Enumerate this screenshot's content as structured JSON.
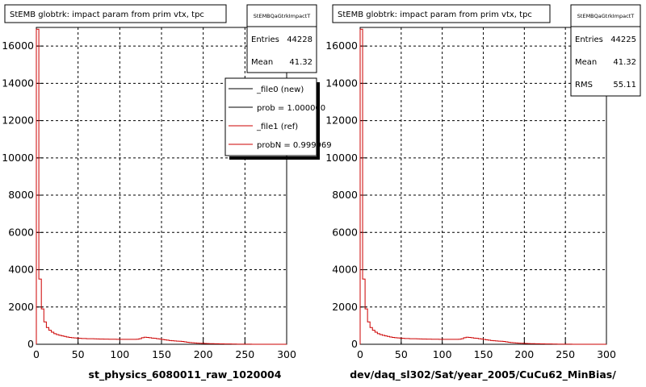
{
  "chart_data": [
    {
      "type": "line",
      "title": "StEMB globtrk: impact param from prim vtx, tpc",
      "xlabel": "st_physics_6080011_raw_1020004",
      "ylabel": "",
      "xlim": [
        0,
        300
      ],
      "ylim": [
        0,
        17000
      ],
      "grid": true,
      "x_ticks": [
        "0",
        "50",
        "100",
        "150",
        "200",
        "250",
        "300"
      ],
      "y_ticks": [
        "0",
        "2000",
        "4000",
        "6000",
        "8000",
        "10000",
        "12000",
        "14000",
        "16000"
      ],
      "stats": {
        "name": "StEMBQaGtrkImpactT",
        "rows": [
          {
            "label": "Entries",
            "value": "44228"
          },
          {
            "label": "Mean",
            "value": "41.32"
          }
        ]
      },
      "legend": {
        "position": "top-right",
        "entries": [
          {
            "label": "_file0 (new)",
            "color": "#000000"
          },
          {
            "label": "prob = 1.000000",
            "color": "#000000"
          },
          {
            "label": "_file1 (ref)",
            "color": "#cc0000"
          },
          {
            "label": "probN = 0.999969",
            "color": "#cc0000"
          }
        ]
      },
      "series": [
        {
          "color": "#cc0000",
          "bin_width": 3,
          "values": [
            16900,
            3500,
            1900,
            1200,
            900,
            750,
            650,
            570,
            520,
            480,
            450,
            420,
            390,
            370,
            350,
            340,
            330,
            320,
            310,
            310,
            300,
            300,
            295,
            290,
            285,
            280,
            280,
            275,
            275,
            270,
            270,
            270,
            265,
            265,
            265,
            265,
            265,
            265,
            265,
            265,
            270,
            300,
            350,
            380,
            370,
            350,
            330,
            320,
            300,
            280,
            260,
            240,
            220,
            200,
            190,
            180,
            170,
            160,
            150,
            130,
            110,
            90,
            80,
            70,
            60,
            55,
            50,
            45,
            40,
            35,
            30,
            27,
            25,
            22,
            20,
            18,
            16,
            14,
            12,
            10,
            8,
            7,
            6,
            5,
            4,
            3,
            2,
            2,
            1,
            1,
            0,
            0,
            0,
            0,
            0,
            0,
            0,
            0,
            0,
            0
          ]
        }
      ]
    },
    {
      "type": "line",
      "title": "StEMB globtrk: impact param from prim vtx, tpc",
      "xlabel": "dev/daq_sl302/Sat/year_2005/CuCu62_MinBias/",
      "ylabel": "",
      "xlim": [
        0,
        300
      ],
      "ylim": [
        0,
        17000
      ],
      "grid": true,
      "x_ticks": [
        "0",
        "50",
        "100",
        "150",
        "200",
        "250",
        "300"
      ],
      "y_ticks": [
        "0",
        "2000",
        "4000",
        "6000",
        "8000",
        "10000",
        "12000",
        "14000",
        "16000"
      ],
      "stats": {
        "name": "StEMBQaGtrkImpactT",
        "rows": [
          {
            "label": "Entries",
            "value": "44225"
          },
          {
            "label": "Mean",
            "value": "41.32"
          },
          {
            "label": "RMS",
            "value": "55.11"
          }
        ]
      },
      "series": [
        {
          "color": "#cc0000",
          "bin_width": 3,
          "values": [
            16900,
            3500,
            1900,
            1200,
            900,
            750,
            650,
            570,
            520,
            480,
            450,
            420,
            390,
            370,
            350,
            340,
            330,
            320,
            310,
            310,
            300,
            300,
            295,
            290,
            285,
            280,
            280,
            275,
            275,
            270,
            270,
            270,
            265,
            265,
            265,
            265,
            265,
            265,
            265,
            265,
            270,
            300,
            350,
            380,
            370,
            350,
            330,
            320,
            300,
            280,
            260,
            240,
            220,
            200,
            190,
            180,
            170,
            160,
            150,
            130,
            110,
            90,
            80,
            70,
            60,
            55,
            50,
            45,
            40,
            35,
            30,
            27,
            25,
            22,
            20,
            18,
            16,
            14,
            12,
            10,
            8,
            7,
            6,
            5,
            4,
            3,
            2,
            2,
            1,
            1,
            0,
            0,
            0,
            0,
            0,
            0,
            0,
            0,
            0,
            0
          ]
        }
      ]
    }
  ]
}
